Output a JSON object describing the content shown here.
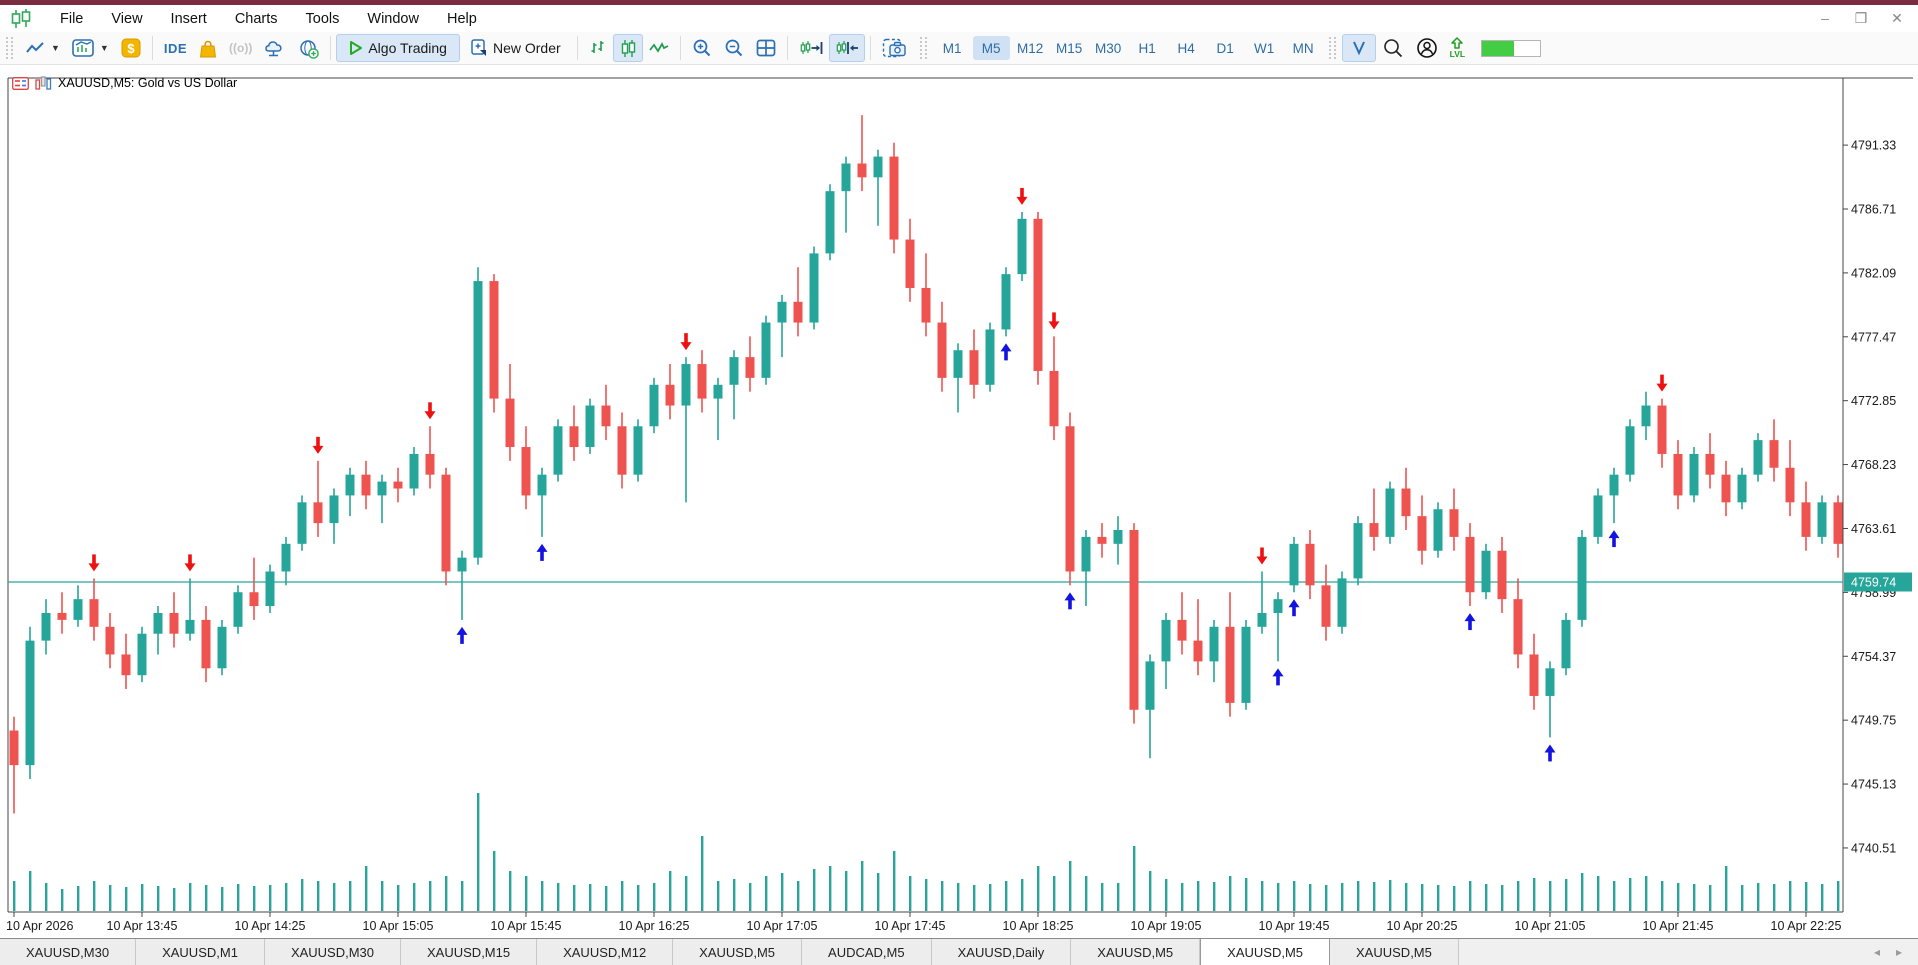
{
  "titlebar": {
    "color": "#7b2c41",
    "controls": {
      "minimize": "–",
      "restore": "❐",
      "close": "✕"
    }
  },
  "menu": {
    "items": [
      "File",
      "View",
      "Insert",
      "Charts",
      "Tools",
      "Window",
      "Help"
    ]
  },
  "toolbar": {
    "ide_label": "IDE",
    "signals_label": "((o))",
    "algo_trading_label": "Algo Trading",
    "new_order_label": "New Order",
    "timeframes": [
      "M1",
      "M5",
      "M12",
      "M15",
      "M30",
      "H1",
      "H4",
      "D1",
      "W1",
      "MN"
    ],
    "active_timeframe": "M5",
    "lvl_label": "LVL",
    "battery_percent": 55
  },
  "chart": {
    "title": "XAUUSD,M5:  Gold vs US Dollar",
    "current_price_label": "4759.74",
    "colors": {
      "up": "#26a69a",
      "down": "#ef5350",
      "price_line": "#26a69a",
      "arrow_up": "#1414e0",
      "arrow_down": "#ee1111",
      "volume": "#26a69a",
      "axis_text": "#1a1a1a",
      "badge_bg": "#26a69a",
      "badge_text": "#ffffff"
    }
  },
  "chart_data": {
    "type": "candlestick",
    "symbol": "XAUUSD",
    "timeframe": "M5",
    "title": "XAUUSD,M5:  Gold vs US Dollar",
    "current_price": 4759.74,
    "y_ticks": [
      4791.33,
      4786.71,
      4782.09,
      4777.47,
      4772.85,
      4768.23,
      4763.61,
      4758.99,
      4754.37,
      4749.75,
      4745.13,
      4740.51
    ],
    "x_ticks": [
      "10 Apr 2026",
      "10 Apr 13:45",
      "10 Apr 14:25",
      "10 Apr 15:05",
      "10 Apr 15:45",
      "10 Apr 16:25",
      "10 Apr 17:05",
      "10 Apr 17:45",
      "10 Apr 18:25",
      "10 Apr 19:05",
      "10 Apr 19:45",
      "10 Apr 20:25",
      "10 Apr 21:05",
      "10 Apr 21:45",
      "10 Apr 22:25"
    ],
    "candles_format": [
      "open",
      "high",
      "low",
      "close",
      "volume_px"
    ],
    "candles": [
      [
        4749.0,
        4750.0,
        4743.0,
        4746.5,
        30
      ],
      [
        4746.5,
        4756.5,
        4745.5,
        4755.5,
        40
      ],
      [
        4755.5,
        4758.5,
        4754.5,
        4757.5,
        28
      ],
      [
        4757.5,
        4759.0,
        4756.0,
        4757.0,
        22
      ],
      [
        4757.0,
        4759.5,
        4756.5,
        4758.5,
        25
      ],
      [
        4758.5,
        4760.0,
        4755.5,
        4756.5,
        30
      ],
      [
        4756.5,
        4757.5,
        4753.5,
        4754.5,
        26
      ],
      [
        4754.5,
        4756.0,
        4752.0,
        4753.0,
        24
      ],
      [
        4753.0,
        4756.5,
        4752.5,
        4756.0,
        27
      ],
      [
        4756.0,
        4758.0,
        4754.5,
        4757.5,
        25
      ],
      [
        4757.5,
        4759.0,
        4755.0,
        4756.0,
        23
      ],
      [
        4756.0,
        4760.0,
        4755.5,
        4757.0,
        28
      ],
      [
        4757.0,
        4758.0,
        4752.5,
        4753.5,
        26
      ],
      [
        4753.5,
        4757.0,
        4753.0,
        4756.5,
        24
      ],
      [
        4756.5,
        4759.5,
        4756.0,
        4759.0,
        27
      ],
      [
        4759.0,
        4761.5,
        4757.0,
        4758.0,
        25
      ],
      [
        4758.0,
        4761.0,
        4757.5,
        4760.5,
        26
      ],
      [
        4760.5,
        4763.0,
        4759.5,
        4762.5,
        28
      ],
      [
        4762.5,
        4766.0,
        4762.0,
        4765.5,
        32
      ],
      [
        4765.5,
        4768.5,
        4763.0,
        4764.0,
        30
      ],
      [
        4764.0,
        4766.5,
        4762.5,
        4766.0,
        28
      ],
      [
        4766.0,
        4768.0,
        4764.5,
        4767.5,
        30
      ],
      [
        4767.5,
        4768.5,
        4765.0,
        4766.0,
        45
      ],
      [
        4766.0,
        4767.5,
        4764.0,
        4767.0,
        30
      ],
      [
        4767.0,
        4768.0,
        4765.5,
        4766.5,
        26
      ],
      [
        4766.5,
        4769.5,
        4766.0,
        4769.0,
        28
      ],
      [
        4769.0,
        4771.0,
        4766.5,
        4767.5,
        30
      ],
      [
        4767.5,
        4768.0,
        4759.5,
        4760.5,
        35
      ],
      [
        4760.5,
        4762.0,
        4757.0,
        4761.5,
        30
      ],
      [
        4761.5,
        4782.5,
        4761.0,
        4781.5,
        118
      ],
      [
        4781.5,
        4782.0,
        4772.0,
        4773.0,
        60
      ],
      [
        4773.0,
        4775.5,
        4768.5,
        4769.5,
        40
      ],
      [
        4769.5,
        4771.0,
        4765.0,
        4766.0,
        35
      ],
      [
        4766.0,
        4768.0,
        4763.0,
        4767.5,
        30
      ],
      [
        4767.5,
        4771.5,
        4767.0,
        4771.0,
        28
      ],
      [
        4771.0,
        4772.5,
        4768.5,
        4769.5,
        26
      ],
      [
        4769.5,
        4773.0,
        4769.0,
        4772.5,
        27
      ],
      [
        4772.5,
        4774.0,
        4770.0,
        4771.0,
        25
      ],
      [
        4771.0,
        4772.0,
        4766.5,
        4767.5,
        30
      ],
      [
        4767.5,
        4771.5,
        4767.0,
        4771.0,
        26
      ],
      [
        4771.0,
        4774.5,
        4770.5,
        4774.0,
        28
      ],
      [
        4774.0,
        4775.5,
        4771.5,
        4772.5,
        40
      ],
      [
        4772.5,
        4776.0,
        4765.5,
        4775.5,
        35
      ],
      [
        4775.5,
        4776.5,
        4772.0,
        4773.0,
        75
      ],
      [
        4773.0,
        4774.5,
        4770.0,
        4774.0,
        30
      ],
      [
        4774.0,
        4776.5,
        4771.5,
        4776.0,
        32
      ],
      [
        4776.0,
        4777.5,
        4773.5,
        4774.5,
        28
      ],
      [
        4774.5,
        4779.0,
        4774.0,
        4778.5,
        35
      ],
      [
        4778.5,
        4780.5,
        4776.0,
        4780.0,
        38
      ],
      [
        4780.0,
        4782.5,
        4777.5,
        4778.5,
        30
      ],
      [
        4778.5,
        4784.0,
        4778.0,
        4783.5,
        42
      ],
      [
        4783.5,
        4788.5,
        4783.0,
        4788.0,
        45
      ],
      [
        4788.0,
        4790.5,
        4785.0,
        4790.0,
        40
      ],
      [
        4790.0,
        4793.5,
        4788.0,
        4789.0,
        50
      ],
      [
        4789.0,
        4791.0,
        4785.5,
        4790.5,
        38
      ],
      [
        4790.5,
        4791.5,
        4783.5,
        4784.5,
        60
      ],
      [
        4784.5,
        4786.0,
        4780.0,
        4781.0,
        35
      ],
      [
        4781.0,
        4783.5,
        4777.5,
        4778.5,
        32
      ],
      [
        4778.5,
        4780.0,
        4773.5,
        4774.5,
        30
      ],
      [
        4774.5,
        4777.0,
        4772.0,
        4776.5,
        28
      ],
      [
        4776.5,
        4778.0,
        4773.0,
        4774.0,
        26
      ],
      [
        4774.0,
        4778.5,
        4773.5,
        4778.0,
        27
      ],
      [
        4778.0,
        4782.5,
        4777.5,
        4782.0,
        30
      ],
      [
        4782.0,
        4786.5,
        4781.5,
        4786.0,
        32
      ],
      [
        4786.0,
        4786.5,
        4774.0,
        4775.0,
        45
      ],
      [
        4775.0,
        4777.5,
        4770.0,
        4771.0,
        35
      ],
      [
        4771.0,
        4772.0,
        4759.5,
        4760.5,
        50
      ],
      [
        4760.5,
        4763.5,
        4758.0,
        4763.0,
        35
      ],
      [
        4763.0,
        4764.0,
        4761.5,
        4762.5,
        28
      ],
      [
        4762.5,
        4764.5,
        4761.0,
        4763.5,
        28
      ],
      [
        4763.5,
        4764.0,
        4749.5,
        4750.5,
        65
      ],
      [
        4750.5,
        4754.5,
        4747.0,
        4754.0,
        40
      ],
      [
        4754.0,
        4757.5,
        4752.0,
        4757.0,
        32
      ],
      [
        4757.0,
        4759.0,
        4754.5,
        4755.5,
        28
      ],
      [
        4755.5,
        4758.5,
        4753.0,
        4754.0,
        30
      ],
      [
        4754.0,
        4757.0,
        4752.5,
        4756.5,
        29
      ],
      [
        4756.5,
        4759.0,
        4750.0,
        4751.0,
        35
      ],
      [
        4751.0,
        4757.0,
        4750.5,
        4756.5,
        33
      ],
      [
        4756.5,
        4760.5,
        4756.0,
        4757.5,
        30
      ],
      [
        4757.5,
        4759.0,
        4754.0,
        4758.5,
        28
      ],
      [
        4759.5,
        4763.0,
        4759.0,
        4762.5,
        30
      ],
      [
        4762.5,
        4763.5,
        4758.5,
        4759.5,
        27
      ],
      [
        4759.5,
        4761.0,
        4755.5,
        4756.5,
        26
      ],
      [
        4756.5,
        4760.5,
        4756.0,
        4760.0,
        28
      ],
      [
        4760.0,
        4764.5,
        4759.5,
        4764.0,
        30
      ],
      [
        4764.0,
        4766.5,
        4762.0,
        4763.0,
        29
      ],
      [
        4763.0,
        4767.0,
        4762.5,
        4766.5,
        31
      ],
      [
        4766.5,
        4768.0,
        4763.5,
        4764.5,
        28
      ],
      [
        4764.5,
        4766.0,
        4761.0,
        4762.0,
        27
      ],
      [
        4762.0,
        4765.5,
        4761.5,
        4765.0,
        26
      ],
      [
        4765.0,
        4766.5,
        4762.0,
        4763.0,
        25
      ],
      [
        4763.0,
        4764.0,
        4758.0,
        4759.0,
        30
      ],
      [
        4759.0,
        4762.5,
        4758.5,
        4762.0,
        27
      ],
      [
        4762.0,
        4763.0,
        4757.5,
        4758.5,
        26
      ],
      [
        4758.5,
        4760.0,
        4753.5,
        4754.5,
        30
      ],
      [
        4754.5,
        4756.0,
        4750.5,
        4751.5,
        33
      ],
      [
        4751.5,
        4754.0,
        4748.5,
        4753.5,
        30
      ],
      [
        4753.5,
        4757.5,
        4753.0,
        4757.0,
        32
      ],
      [
        4757.0,
        4763.5,
        4756.5,
        4763.0,
        38
      ],
      [
        4763.0,
        4766.5,
        4762.5,
        4766.0,
        35
      ],
      [
        4766.0,
        4768.0,
        4764.0,
        4767.5,
        30
      ],
      [
        4767.5,
        4771.5,
        4767.0,
        4771.0,
        33
      ],
      [
        4771.0,
        4773.5,
        4770.0,
        4772.5,
        35
      ],
      [
        4772.5,
        4773.0,
        4768.0,
        4769.0,
        30
      ],
      [
        4769.0,
        4770.0,
        4765.0,
        4766.0,
        28
      ],
      [
        4766.0,
        4769.5,
        4765.5,
        4769.0,
        27
      ],
      [
        4769.0,
        4770.5,
        4766.5,
        4767.5,
        26
      ],
      [
        4767.5,
        4768.5,
        4764.5,
        4765.5,
        45
      ],
      [
        4765.5,
        4768.0,
        4765.0,
        4767.5,
        26
      ],
      [
        4767.5,
        4770.5,
        4767.0,
        4770.0,
        28
      ],
      [
        4770.0,
        4771.5,
        4767.0,
        4768.0,
        27
      ],
      [
        4768.0,
        4770.0,
        4764.5,
        4765.5,
        30
      ],
      [
        4765.5,
        4767.0,
        4762.0,
        4763.0,
        29
      ],
      [
        4763.0,
        4766.0,
        4762.5,
        4765.5,
        27
      ],
      [
        4765.5,
        4766.0,
        4761.5,
        4762.5,
        30
      ]
    ],
    "signals": [
      {
        "i": 5,
        "dir": "down"
      },
      {
        "i": 11,
        "dir": "down"
      },
      {
        "i": 19,
        "dir": "down"
      },
      {
        "i": 26,
        "dir": "down"
      },
      {
        "i": 28,
        "dir": "up"
      },
      {
        "i": 33,
        "dir": "up"
      },
      {
        "i": 42,
        "dir": "down"
      },
      {
        "i": 62,
        "dir": "up"
      },
      {
        "i": 63,
        "dir": "down"
      },
      {
        "i": 65,
        "dir": "down"
      },
      {
        "i": 66,
        "dir": "up"
      },
      {
        "i": 78,
        "dir": "down"
      },
      {
        "i": 79,
        "dir": "up"
      },
      {
        "i": 80,
        "dir": "up"
      },
      {
        "i": 91,
        "dir": "up"
      },
      {
        "i": 96,
        "dir": "up"
      },
      {
        "i": 100,
        "dir": "up"
      },
      {
        "i": 103,
        "dir": "down"
      }
    ]
  },
  "tabbar": {
    "tabs": [
      "XAUUSD,M30",
      "XAUUSD,M1",
      "XAUUSD,M30",
      "XAUUSD,M15",
      "XAUUSD,M12",
      "XAUUSD,M5",
      "AUDCAD,M5",
      "XAUUSD,Daily",
      "XAUUSD,M5",
      "XAUUSD,M5",
      "XAUUSD,M5"
    ],
    "active_index": 9,
    "scroll_left": "◂",
    "scroll_right": "▸"
  }
}
